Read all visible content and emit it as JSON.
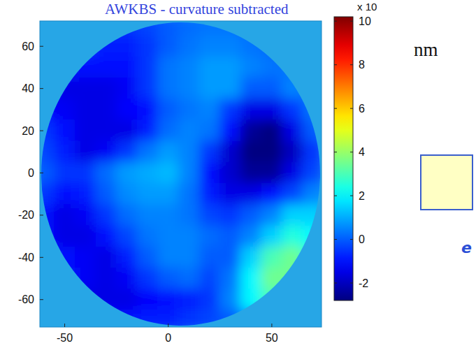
{
  "chart_data": {
    "type": "heatmap",
    "title": "AWKBS - curvature subtracted",
    "x": [
      -60,
      -50,
      -40,
      -30,
      -20,
      -10,
      0,
      10,
      20,
      30,
      40,
      50,
      60,
      70
    ],
    "y": [
      70,
      60,
      50,
      40,
      30,
      20,
      10,
      0,
      -10,
      -20,
      -30,
      -40,
      -50,
      -60,
      -70
    ],
    "values": [
      [
        0,
        0,
        -0.3,
        -0.5,
        -0.5,
        -0.3,
        0,
        0.2,
        0.3,
        0.3,
        0.2,
        0,
        0,
        0
      ],
      [
        0,
        -0.3,
        -0.5,
        -0.8,
        -0.8,
        -0.5,
        0,
        0.3,
        0.5,
        0.5,
        0.3,
        0.2,
        0.2,
        0
      ],
      [
        -0.5,
        -0.8,
        -1,
        -1,
        -1,
        -0.5,
        0.3,
        0.5,
        0.8,
        0.8,
        0.5,
        0.3,
        0.3,
        0.2
      ],
      [
        -0.8,
        -1.5,
        -1.5,
        -1.5,
        -1.3,
        -0.5,
        0.3,
        0.5,
        0.8,
        0.8,
        0,
        0,
        0.5,
        0.3
      ],
      [
        -1,
        -1.3,
        -1.5,
        -1.5,
        -1.2,
        -1,
        0,
        0.3,
        0.5,
        -0.5,
        -1.5,
        -1.5,
        -0.5,
        0.3
      ],
      [
        -0.5,
        -1,
        -1.5,
        -1.5,
        -1.5,
        -0.8,
        0.2,
        0.5,
        0.3,
        -1,
        -2.5,
        -2.8,
        -1.5,
        0
      ],
      [
        -0.3,
        -0.8,
        -1.5,
        -1.3,
        -0.5,
        0.3,
        0.8,
        0.5,
        -0.5,
        -1.8,
        -3,
        -3,
        -2,
        -0.5
      ],
      [
        0,
        -0.5,
        -0.5,
        0.2,
        0.8,
        1,
        1.2,
        0.5,
        -1,
        -1.8,
        -2.5,
        -2.5,
        -1.5,
        -0.3
      ],
      [
        -0.5,
        -1,
        -0.8,
        0,
        0.6,
        0.8,
        0.8,
        0.3,
        -0.8,
        -1.5,
        -1.5,
        -1,
        -0.3,
        0.5
      ],
      [
        -1,
        -1.5,
        -1.3,
        -0.5,
        0.2,
        0.5,
        0.5,
        0.3,
        -0.3,
        -0.5,
        0,
        0.5,
        1.5,
        1.5
      ],
      [
        -1,
        -1.5,
        -1.5,
        -1,
        -0.3,
        0.3,
        0.5,
        0.5,
        0.2,
        0,
        0.5,
        1.5,
        2.5,
        2
      ],
      [
        -0.5,
        -1,
        -1.3,
        -1.5,
        -0.8,
        0,
        0.5,
        0.5,
        0,
        0,
        1.5,
        3,
        3.5,
        2.5
      ],
      [
        -0.5,
        -0.8,
        -1.3,
        -1.5,
        -1.3,
        -0.5,
        0,
        0.2,
        -0.3,
        0.3,
        2,
        3.5,
        3.5,
        2
      ],
      [
        -0.5,
        -1,
        -1.5,
        -1.5,
        -1.5,
        -1.2,
        -1,
        -0.8,
        -0.5,
        0.5,
        2,
        3,
        2,
        1
      ],
      [
        -0.3,
        -0.5,
        -0.8,
        -1,
        -1,
        -0.8,
        -0.8,
        -0.5,
        -0.3,
        0,
        0.5,
        1,
        0.5,
        0.3
      ]
    ],
    "xlim": [
      -62,
      74
    ],
    "ylim": [
      -73,
      72
    ],
    "xticks": [
      -50,
      0,
      50
    ],
    "yticks": [
      -60,
      -40,
      -20,
      0,
      20,
      40,
      60
    ],
    "colorbar": {
      "range": [
        -2.8,
        10.2
      ],
      "ticks": [
        -2,
        0,
        2,
        4,
        6,
        8,
        10
      ],
      "label": "x 10"
    },
    "unit_label": "nm",
    "annotations": [
      "e"
    ]
  }
}
